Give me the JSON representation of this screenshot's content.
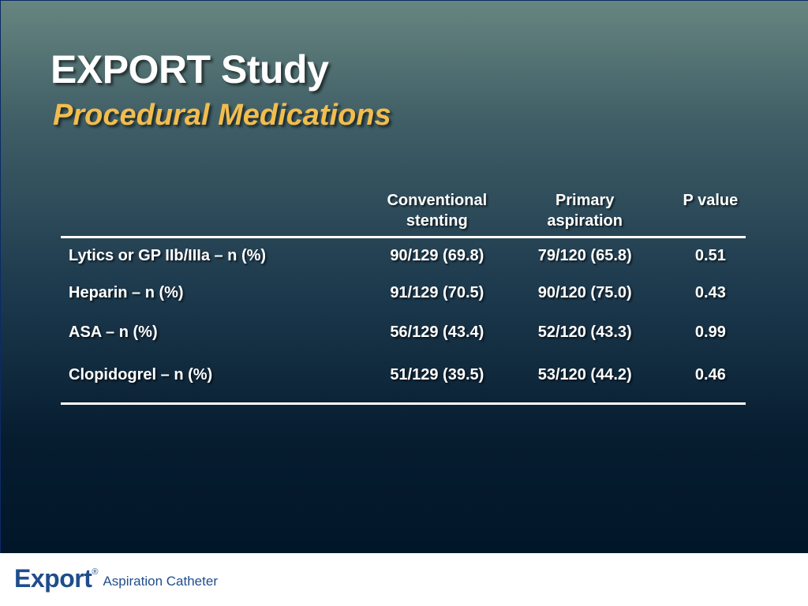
{
  "slide": {
    "title": "EXPORT Study",
    "subtitle": "Procedural Medications"
  },
  "table": {
    "headers": [
      {
        "line1": "",
        "line2": ""
      },
      {
        "line1": "Conventional",
        "line2": "stenting"
      },
      {
        "line1": "Primary",
        "line2": "aspiration"
      },
      {
        "line1": "P value",
        "line2": ""
      }
    ],
    "rows": [
      {
        "label": "Lytics or GP IIb/IIIa – n (%)",
        "conventional": "90/129 (69.8)",
        "aspiration": "79/120 (65.8)",
        "p": "0.51"
      },
      {
        "label": "Heparin – n (%)",
        "conventional": "91/129 (70.5)",
        "aspiration": "90/120 (75.0)",
        "p": "0.43"
      },
      {
        "label": "ASA – n (%)",
        "conventional": "56/129 (43.4)",
        "aspiration": "52/120 (43.3)",
        "p": "0.99"
      },
      {
        "label": "Clopidogrel – n (%)",
        "conventional": "51/129 (39.5)",
        "aspiration": "53/120 (44.2)",
        "p": "0.46"
      }
    ]
  },
  "footer": {
    "logo_word": "Export",
    "logo_reg": "®",
    "logo_sub": "Aspiration Catheter"
  },
  "colors": {
    "title": "#ffffff",
    "subtitle": "#f2bd4e",
    "logo": "#1f4d8c"
  }
}
